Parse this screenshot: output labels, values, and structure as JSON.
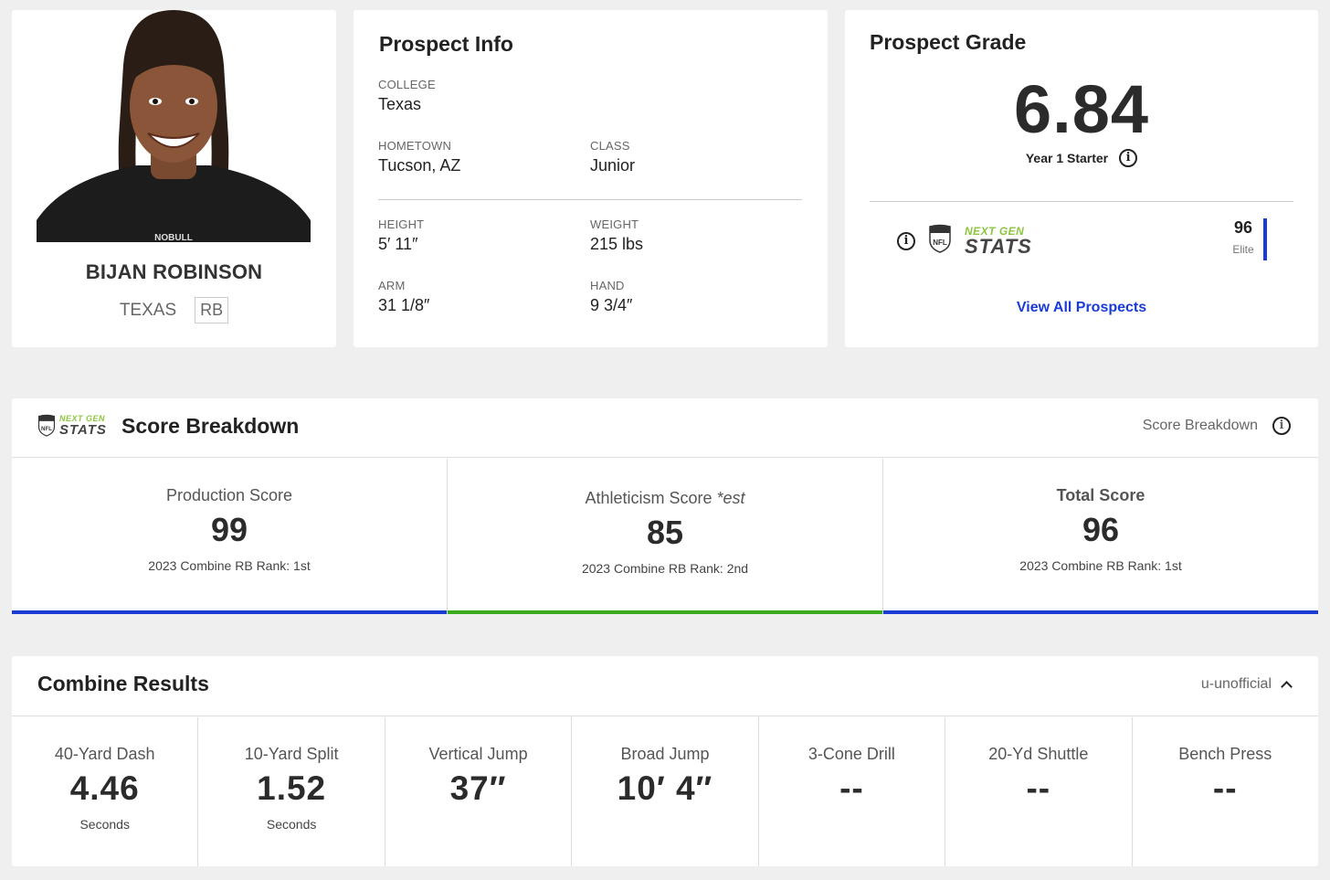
{
  "player": {
    "name": "BIJAN ROBINSON",
    "college": "TEXAS",
    "position": "RB",
    "photo_alt": "Bijan Robinson headshot"
  },
  "prospect_info": {
    "title": "Prospect Info",
    "college_label": "COLLEGE",
    "college": "Texas",
    "hometown_label": "HOMETOWN",
    "hometown": "Tucson, AZ",
    "class_label": "CLASS",
    "class": "Junior",
    "height_label": "HEIGHT",
    "height": "5′ 11″",
    "weight_label": "WEIGHT",
    "weight": "215 lbs",
    "arm_label": "ARM",
    "arm": "31 1/8″",
    "hand_label": "HAND",
    "hand": "9 3/4″"
  },
  "prospect_grade": {
    "title": "Prospect Grade",
    "grade": "6.84",
    "grade_desc": "Year 1 Starter",
    "ngs_logo_top": "NEXT GEN",
    "ngs_logo_bottom": "STATS",
    "ngs_score": "96",
    "ngs_tier": "Elite",
    "view_all": "View All Prospects"
  },
  "score_breakdown": {
    "title": "Score Breakdown",
    "right_label": "Score Breakdown",
    "logo_top": "NEXT GEN",
    "logo_bottom": "STATS",
    "scores": [
      {
        "label": "Production Score",
        "value": "99",
        "rank": "2023 Combine RB Rank: 1st",
        "bar_color": "#1a3cd6"
      },
      {
        "label": "Athleticism Score ",
        "label_suffix": "*est",
        "value": "85",
        "rank": "2023 Combine RB Rank: 2nd",
        "bar_color": "#3aaa1e"
      },
      {
        "label": "Total Score",
        "value": "96",
        "rank": "2023 Combine RB Rank: 1st",
        "bar_color": "#1a3cd6"
      }
    ]
  },
  "combine_results": {
    "title": "Combine Results",
    "right_label": "u-unofficial",
    "drills": [
      {
        "label": "40-Yard Dash",
        "value": "4.46",
        "unit": "Seconds"
      },
      {
        "label": "10-Yard Split",
        "value": "1.52",
        "unit": "Seconds"
      },
      {
        "label": "Vertical Jump",
        "value": "37″",
        "unit": ""
      },
      {
        "label": "Broad Jump",
        "value": "10′ 4″",
        "unit": ""
      },
      {
        "label": "3-Cone Drill",
        "value": "--",
        "unit": ""
      },
      {
        "label": "20-Yd Shuttle",
        "value": "--",
        "unit": ""
      },
      {
        "label": "Bench Press",
        "value": "--",
        "unit": ""
      }
    ]
  }
}
